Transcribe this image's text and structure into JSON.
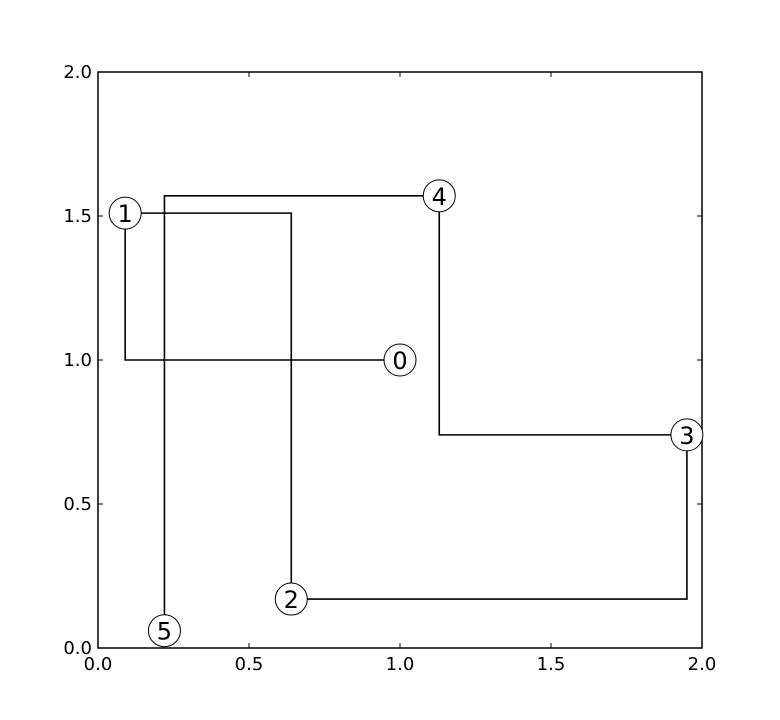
{
  "chart_data": {
    "type": "line",
    "title": "",
    "xlabel": "",
    "ylabel": "",
    "xlim": [
      0,
      2
    ],
    "ylim": [
      0,
      2
    ],
    "grid": false,
    "x_ticks": [
      0.0,
      0.5,
      1.0,
      1.5,
      2.0
    ],
    "y_ticks": [
      0.0,
      0.5,
      1.0,
      1.5,
      2.0
    ],
    "x_tick_labels": [
      "0.0",
      "0.5",
      "1.0",
      "1.5",
      "2.0"
    ],
    "y_tick_labels": [
      "0.0",
      "0.5",
      "1.0",
      "1.5",
      "2.0"
    ],
    "nodes": [
      {
        "label": "0",
        "x": 1.0,
        "y": 1.0
      },
      {
        "label": "1",
        "x": 0.09,
        "y": 1.51
      },
      {
        "label": "2",
        "x": 0.64,
        "y": 0.17
      },
      {
        "label": "3",
        "x": 1.95,
        "y": 0.74
      },
      {
        "label": "4",
        "x": 1.13,
        "y": 1.57
      },
      {
        "label": "5",
        "x": 0.22,
        "y": 0.06
      }
    ],
    "path_order": [
      "0",
      "1",
      "2",
      "3",
      "4",
      "5"
    ],
    "line_color": "#000000"
  }
}
